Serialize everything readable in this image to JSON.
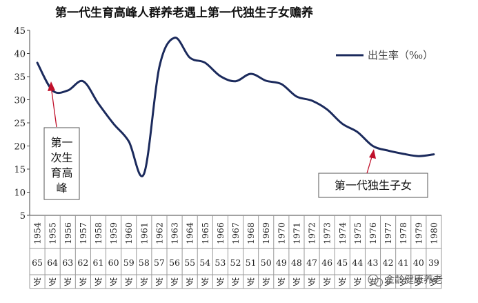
{
  "chart_data": {
    "type": "line",
    "title": "第一代生育高峰人群养老遇上第一代独生子女赡养",
    "ylim": [
      5,
      45
    ],
    "yticks": [
      "5",
      "10",
      "15",
      "20",
      "25",
      "30",
      "35",
      "40",
      "45"
    ],
    "grid": false,
    "legend_position": "top-right",
    "categories": [
      "1954",
      "1955",
      "1956",
      "1957",
      "1958",
      "1959",
      "1960",
      "1961",
      "1962",
      "1963",
      "1964",
      "1965",
      "1966",
      "1967",
      "1968",
      "1969",
      "1970",
      "1971",
      "1972",
      "1973",
      "1974",
      "1975",
      "1976",
      "1977",
      "1978",
      "1979",
      "1980"
    ],
    "age_labels": [
      "65",
      "64",
      "63",
      "62",
      "61",
      "60",
      "59",
      "58",
      "57",
      "56",
      "55",
      "54",
      "53",
      "52",
      "51",
      "50",
      "49",
      "48",
      "47",
      "46",
      "45",
      "44",
      "43",
      "42",
      "41",
      "40",
      "39"
    ],
    "age_unit": "岁",
    "series": [
      {
        "name": "出生率（‰）",
        "color": "#1b2a5c",
        "values": [
          38.0,
          32.0,
          32.0,
          34.0,
          29.2,
          24.8,
          21.0,
          14.0,
          37.0,
          43.4,
          39.1,
          38.0,
          35.1,
          34.0,
          35.6,
          34.1,
          33.4,
          30.7,
          29.8,
          27.9,
          24.8,
          23.0,
          20.0,
          19.0,
          18.3,
          17.8,
          18.2
        ]
      }
    ],
    "annotations": [
      {
        "text": "第一次生育高峰",
        "lines": [
          "第一",
          "次生",
          "育高",
          "峰"
        ],
        "points_to": "1955"
      },
      {
        "text": "第一代独生子女",
        "points_to": "1976"
      }
    ]
  },
  "watermark": "金龄健康养老",
  "colors": {
    "line": "#1b2a5c",
    "arrow": "#c0102a",
    "axis": "#444444"
  }
}
